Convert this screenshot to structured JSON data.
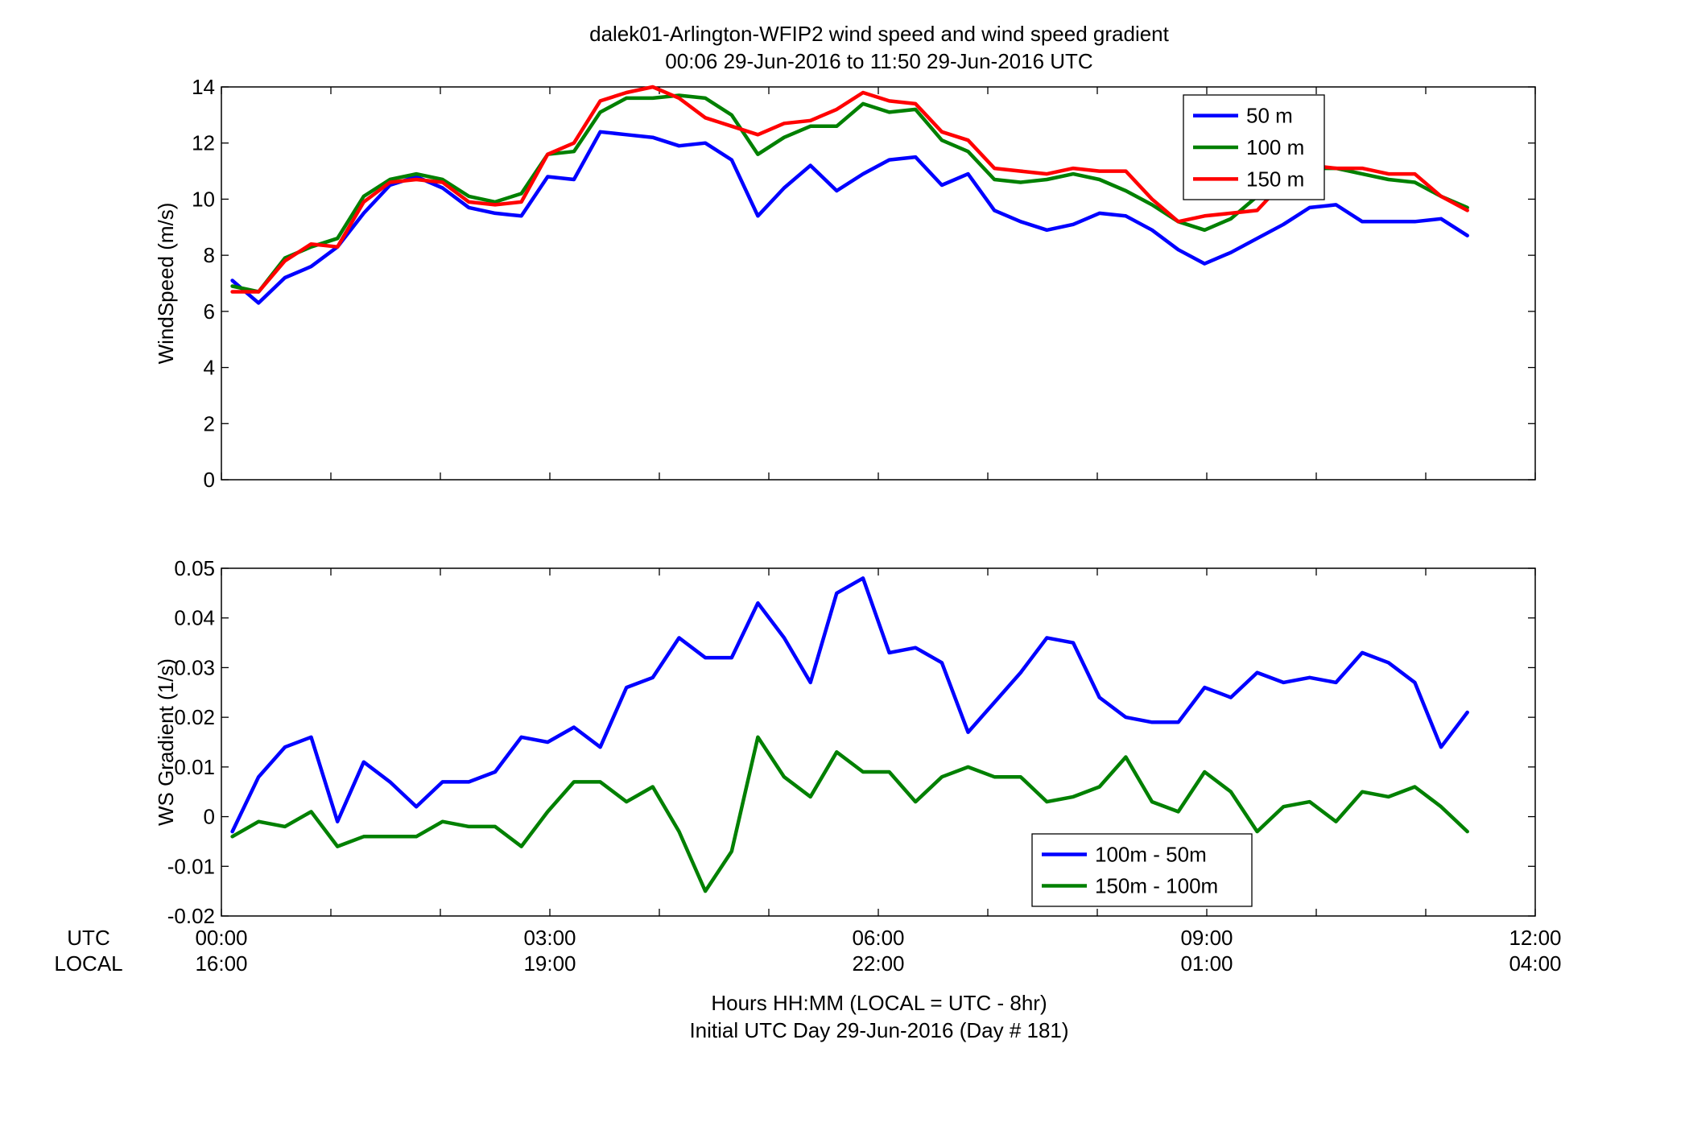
{
  "title": "dalek01-Arlington-WFIP2  wind speed and wind speed gradient",
  "subtitle": "00:06 29-Jun-2016 to 11:50 29-Jun-2016  UTC",
  "xlabel_line1": "Hours HH:MM  (LOCAL = UTC - 8hr)",
  "xlabel_line2": "Initial UTC Day 29-Jun-2016 (Day # 181)",
  "row_label_utc": "UTC",
  "row_label_local": "LOCAL",
  "x_ticks_utc": [
    "00:00",
    "03:00",
    "06:00",
    "09:00",
    "12:00"
  ],
  "x_ticks_local": [
    "16:00",
    "19:00",
    "22:00",
    "01:00",
    "04:00"
  ],
  "chart_data": [
    {
      "type": "line",
      "ylabel": "WindSpeed (m/s)",
      "xlim": [
        0,
        12
      ],
      "ylim": [
        0,
        14
      ],
      "yticks": [
        0,
        2,
        4,
        6,
        8,
        10,
        12,
        14
      ],
      "yticklabels": [
        "0",
        "2",
        "4",
        "6",
        "8",
        "10",
        "12",
        "14"
      ],
      "xticks": [
        0,
        1,
        2,
        3,
        4,
        5,
        6,
        7,
        8,
        9,
        10,
        11,
        12
      ],
      "grid": false,
      "legend_position": "top-right",
      "x_start_hours": 0.1,
      "x_step_hours": 0.24,
      "series": [
        {
          "name": "50 m",
          "color": "#0000ff",
          "values": [
            7.1,
            6.3,
            7.2,
            7.6,
            8.3,
            9.5,
            10.5,
            10.8,
            10.4,
            9.7,
            9.5,
            9.4,
            10.8,
            10.7,
            12.4,
            12.3,
            12.2,
            11.9,
            12.0,
            11.4,
            9.4,
            10.4,
            11.2,
            10.3,
            10.9,
            11.4,
            11.5,
            10.5,
            10.9,
            9.6,
            9.2,
            8.9,
            9.1,
            9.5,
            9.4,
            8.9,
            8.2,
            7.7,
            8.1,
            8.6,
            9.1,
            9.7,
            9.8,
            9.2,
            9.2,
            9.2,
            9.3,
            8.7
          ]
        },
        {
          "name": "100 m",
          "color": "#008000",
          "values": [
            6.9,
            6.7,
            7.9,
            8.3,
            8.6,
            10.1,
            10.7,
            10.9,
            10.7,
            10.1,
            9.9,
            10.2,
            11.6,
            11.7,
            13.1,
            13.6,
            13.6,
            13.7,
            13.6,
            13.0,
            11.6,
            12.2,
            12.6,
            12.6,
            13.4,
            13.1,
            13.2,
            12.1,
            11.7,
            10.7,
            10.6,
            10.7,
            10.9,
            10.7,
            10.3,
            9.8,
            9.2,
            8.9,
            9.3,
            10.1,
            10.6,
            11.1,
            11.1,
            10.9,
            10.7,
            10.6,
            10.1,
            9.7
          ]
        },
        {
          "name": "150 m",
          "color": "#ff0000",
          "values": [
            6.7,
            6.7,
            7.8,
            8.4,
            8.3,
            9.9,
            10.6,
            10.7,
            10.6,
            9.9,
            9.8,
            9.9,
            11.6,
            12.0,
            13.5,
            13.8,
            14.0,
            13.6,
            12.9,
            12.6,
            12.3,
            12.7,
            12.8,
            13.2,
            13.8,
            13.5,
            13.4,
            12.4,
            12.1,
            11.1,
            11.0,
            10.9,
            11.1,
            11.0,
            11.0,
            10.0,
            9.2,
            9.4,
            9.5,
            9.6,
            10.6,
            11.2,
            11.1,
            11.1,
            10.9,
            10.9,
            10.1,
            9.6
          ]
        }
      ]
    },
    {
      "type": "line",
      "ylabel": "WS Gradient (1/s)",
      "xlim": [
        0,
        12
      ],
      "ylim": [
        -0.02,
        0.05
      ],
      "yticks": [
        -0.02,
        -0.01,
        0,
        0.01,
        0.02,
        0.03,
        0.04,
        0.05
      ],
      "yticklabels": [
        "-0.02",
        "-0.01",
        "0",
        "0.01",
        "0.02",
        "0.03",
        "0.04",
        "0.05"
      ],
      "xticks": [
        0,
        1,
        2,
        3,
        4,
        5,
        6,
        7,
        8,
        9,
        10,
        11,
        12
      ],
      "grid": false,
      "legend_position": "bottom-center",
      "x_start_hours": 0.1,
      "x_step_hours": 0.24,
      "series": [
        {
          "name": "100m - 50m",
          "color": "#0000ff",
          "values": [
            -0.003,
            0.008,
            0.014,
            0.016,
            -0.001,
            0.011,
            0.007,
            0.002,
            0.007,
            0.007,
            0.009,
            0.016,
            0.015,
            0.018,
            0.014,
            0.026,
            0.028,
            0.036,
            0.032,
            0.032,
            0.043,
            0.036,
            0.027,
            0.045,
            0.048,
            0.033,
            0.034,
            0.031,
            0.017,
            0.023,
            0.029,
            0.036,
            0.035,
            0.024,
            0.02,
            0.019,
            0.019,
            0.026,
            0.024,
            0.029,
            0.027,
            0.028,
            0.027,
            0.033,
            0.031,
            0.027,
            0.014,
            0.021
          ]
        },
        {
          "name": "150m - 100m",
          "color": "#008000",
          "values": [
            -0.004,
            -0.001,
            -0.002,
            0.001,
            -0.006,
            -0.004,
            -0.004,
            -0.004,
            -0.001,
            -0.002,
            -0.002,
            -0.006,
            0.001,
            0.007,
            0.007,
            0.003,
            0.006,
            -0.003,
            -0.015,
            -0.007,
            0.016,
            0.008,
            0.004,
            0.013,
            0.009,
            0.009,
            0.003,
            0.008,
            0.01,
            0.008,
            0.008,
            0.003,
            0.004,
            0.006,
            0.012,
            0.003,
            0.001,
            0.009,
            0.005,
            -0.003,
            0.002,
            0.003,
            -0.001,
            0.005,
            0.004,
            0.006,
            0.002,
            -0.003
          ]
        }
      ]
    }
  ]
}
